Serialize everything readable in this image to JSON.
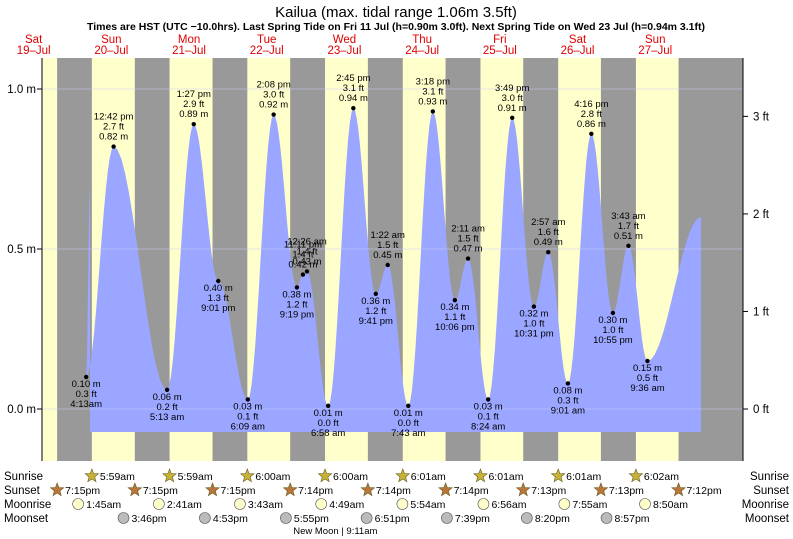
{
  "chart_data": {
    "type": "area",
    "title": "Kailua (max. tidal range 1.06m 3.5ft)",
    "subtitle": "Times are HST (UTC −10.0hrs). Last Spring Tide on Fri 11 Jul (h=0.90m 3.0ft). Next Spring Tide on Wed 23 Jul (h=0.94m 3.1ft)",
    "ylim_m": [
      -0.08,
      1.09
    ],
    "y_ticks_m": [
      {
        "value": 0.0,
        "label": "0.0 m"
      },
      {
        "value": 0.5,
        "label": "0.5 m"
      },
      {
        "value": 1.0,
        "label": "1.0 m"
      }
    ],
    "y_ticks_ft": [
      {
        "value": 0,
        "label": "0 ft"
      },
      {
        "value": 1,
        "label": "1 ft"
      },
      {
        "value": 2,
        "label": "2 ft"
      },
      {
        "value": 3,
        "label": "3 ft"
      }
    ],
    "days": [
      {
        "day": "Sat",
        "date": "19–Jul",
        "sunrise": "",
        "sunset": "",
        "moonrise": "",
        "moonset": ""
      },
      {
        "day": "Sun",
        "date": "20–Jul",
        "sunrise": "5:59am",
        "sunset": "7:15pm",
        "moonrise": "1:45am",
        "moonset": "3:46pm"
      },
      {
        "day": "Mon",
        "date": "21–Jul",
        "sunrise": "5:59am",
        "sunset": "7:15pm",
        "moonrise": "2:41am",
        "moonset": "4:53pm"
      },
      {
        "day": "Tue",
        "date": "22–Jul",
        "sunrise": "6:00am",
        "sunset": "7:14pm",
        "moonrise": "3:43am",
        "moonset": "5:55pm"
      },
      {
        "day": "Wed",
        "date": "23–Jul",
        "sunrise": "6:00am",
        "sunset": "7:14pm",
        "moonrise": "4:49am",
        "moonset": "6:51pm"
      },
      {
        "day": "Thu",
        "date": "24–Jul",
        "sunrise": "6:01am",
        "sunset": "7:14pm",
        "moonrise": "5:54am",
        "moonset": "7:39pm"
      },
      {
        "day": "Fri",
        "date": "25–Jul",
        "sunrise": "6:01am",
        "sunset": "7:13pm",
        "moonrise": "6:56am",
        "moonset": "8:20pm"
      },
      {
        "day": "Sat",
        "date": "26–Jul",
        "sunrise": "6:01am",
        "sunset": "7:13pm",
        "moonrise": "7:55am",
        "moonset": "8:57pm"
      },
      {
        "day": "Sun",
        "date": "27–Jul",
        "sunrise": "6:02am",
        "sunset": "7:12pm",
        "moonrise": "8:50am",
        "moonset": ""
      }
    ],
    "extra_sunset": {
      "day_index": 0,
      "time": "7:15pm"
    },
    "extremes": [
      {
        "day": 1,
        "time": "4:13am",
        "m": "0.10 m",
        "ft": "0.3 ft",
        "h": 0.1,
        "type": "low"
      },
      {
        "day": 1,
        "time": "12:42 pm",
        "m": "0.82 m",
        "ft": "2.7 ft",
        "h": 0.82,
        "type": "high"
      },
      {
        "day": 2,
        "time": "5:13 am",
        "m": "0.06 m",
        "ft": "0.2 ft",
        "h": 0.06,
        "type": "low"
      },
      {
        "day": 2,
        "time": "1:27 pm",
        "m": "0.89 m",
        "ft": "2.9 ft",
        "h": 0.89,
        "type": "high"
      },
      {
        "day": 2,
        "time": "9:01 pm",
        "m": "0.40 m",
        "ft": "1.3 ft",
        "h": 0.4,
        "type": "low"
      },
      {
        "day": 3,
        "time": "11:11 pm",
        "m": "0.42 m",
        "ft": "1.4 ft",
        "h": 0.42,
        "type": "high"
      },
      {
        "day": 3,
        "time": "6:09 am",
        "m": "0.03 m",
        "ft": "0.1 ft",
        "h": 0.03,
        "type": "low"
      },
      {
        "day": 3,
        "time": "2:08 pm",
        "m": "0.92 m",
        "ft": "3.0 ft",
        "h": 0.92,
        "type": "high"
      },
      {
        "day": 3,
        "time": "9:19 pm",
        "m": "0.38 m",
        "ft": "1.2 ft",
        "h": 0.38,
        "type": "low"
      },
      {
        "day": 4,
        "time": "12:26 am",
        "m": "0.43 m",
        "ft": "1.4 ft",
        "h": 0.43,
        "type": "high"
      },
      {
        "day": 4,
        "time": "6:58 am",
        "m": "0.01 m",
        "ft": "0.0 ft",
        "h": 0.01,
        "type": "low"
      },
      {
        "day": 4,
        "time": "2:45 pm",
        "m": "0.94 m",
        "ft": "3.1 ft",
        "h": 0.94,
        "type": "high"
      },
      {
        "day": 4,
        "time": "9:41 pm",
        "m": "0.36 m",
        "ft": "1.2 ft",
        "h": 0.36,
        "type": "low"
      },
      {
        "day": 5,
        "time": "1:22 am",
        "m": "0.45 m",
        "ft": "1.5 ft",
        "h": 0.45,
        "type": "high"
      },
      {
        "day": 5,
        "time": "7:43 am",
        "m": "0.01 m",
        "ft": "0.0 ft",
        "h": 0.01,
        "type": "low"
      },
      {
        "day": 5,
        "time": "3:18 pm",
        "m": "0.93 m",
        "ft": "3.1 ft",
        "h": 0.93,
        "type": "high"
      },
      {
        "day": 5,
        "time": "10:06 pm",
        "m": "0.34 m",
        "ft": "1.1 ft",
        "h": 0.34,
        "type": "low"
      },
      {
        "day": 6,
        "time": "2:11 am",
        "m": "0.47 m",
        "ft": "1.5 ft",
        "h": 0.47,
        "type": "high"
      },
      {
        "day": 6,
        "time": "8:24 am",
        "m": "0.03 m",
        "ft": "0.1 ft",
        "h": 0.03,
        "type": "low"
      },
      {
        "day": 6,
        "time": "3:49 pm",
        "m": "0.91 m",
        "ft": "3.0 ft",
        "h": 0.91,
        "type": "high"
      },
      {
        "day": 6,
        "time": "10:31 pm",
        "m": "0.32 m",
        "ft": "1.0 ft",
        "h": 0.32,
        "type": "low"
      },
      {
        "day": 7,
        "time": "2:57 am",
        "m": "0.49 m",
        "ft": "1.6 ft",
        "h": 0.49,
        "type": "high"
      },
      {
        "day": 7,
        "time": "9:01 am",
        "m": "0.08 m",
        "ft": "0.3 ft",
        "h": 0.08,
        "type": "low"
      },
      {
        "day": 7,
        "time": "4:16 pm",
        "m": "0.86 m",
        "ft": "2.8 ft",
        "h": 0.86,
        "type": "high"
      },
      {
        "day": 7,
        "time": "10:55 pm",
        "m": "0.30 m",
        "ft": "1.0 ft",
        "h": 0.3,
        "type": "low"
      },
      {
        "day": 8,
        "time": "3:43 am",
        "m": "0.51 m",
        "ft": "1.7 ft",
        "h": 0.51,
        "type": "high"
      },
      {
        "day": 8,
        "time": "9:36 am",
        "m": "0.15 m",
        "ft": "0.5 ft",
        "h": 0.15,
        "type": "low"
      }
    ],
    "row_labels": {
      "sunrise": "Sunrise",
      "sunset": "Sunset",
      "moonrise": "Moonrise",
      "moonset": "Moonset"
    },
    "moon_phase": {
      "label": "New Moon",
      "time": "9:11am",
      "day": 4
    },
    "colors": {
      "day": "#ffffcc",
      "night": "#999999",
      "water": "#9aa6ff",
      "red_text": "#e00000",
      "sun": "#c6b235",
      "sunset": "#b8763a",
      "moon": "#ffffcc",
      "moonset": "#bbbbbb"
    }
  }
}
